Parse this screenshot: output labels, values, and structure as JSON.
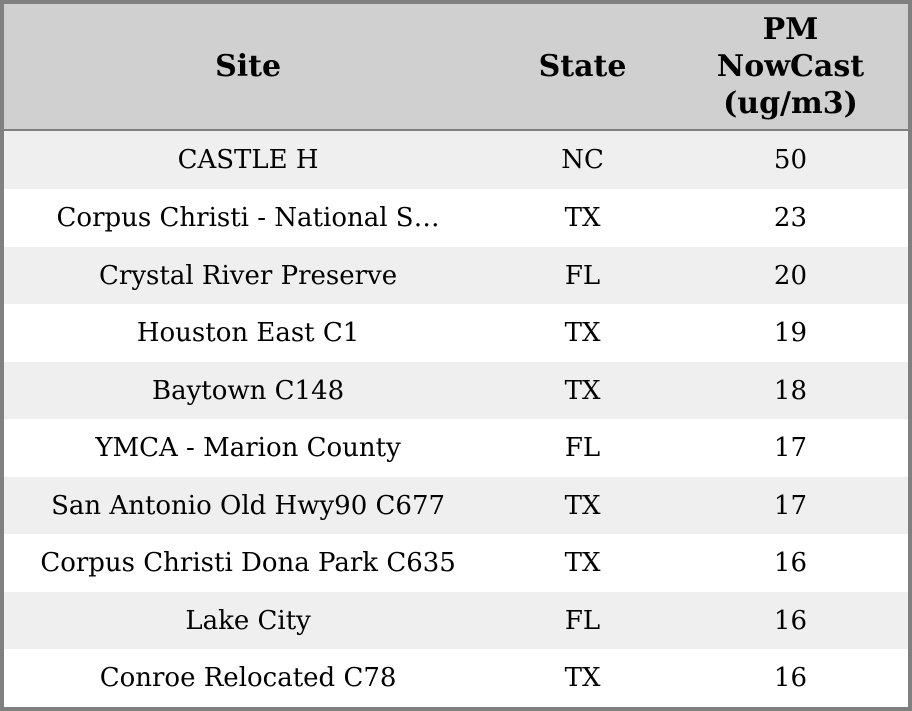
{
  "colors": {
    "border": "#808080",
    "header-bg": "#d0d0d0",
    "row-bg": "#ffffff",
    "row-alt-bg": "#efefef",
    "text": "#000000"
  },
  "table": {
    "columns": [
      {
        "key": "site",
        "label": "Site"
      },
      {
        "key": "state",
        "label": "State"
      },
      {
        "key": "pm",
        "label": "PM NowCast (ug/m3)"
      }
    ],
    "rows": [
      {
        "site": "CASTLE H",
        "state": "NC",
        "pm": "50"
      },
      {
        "site": "Corpus Christi - National S…",
        "state": "TX",
        "pm": "23"
      },
      {
        "site": "Crystal River Preserve",
        "state": "FL",
        "pm": "20"
      },
      {
        "site": "Houston East C1",
        "state": "TX",
        "pm": "19"
      },
      {
        "site": "Baytown C148",
        "state": "TX",
        "pm": "18"
      },
      {
        "site": "YMCA - Marion County",
        "state": "FL",
        "pm": "17"
      },
      {
        "site": "San Antonio Old Hwy90 C677",
        "state": "TX",
        "pm": "17"
      },
      {
        "site": "Corpus Christi Dona Park C635",
        "state": "TX",
        "pm": "16"
      },
      {
        "site": "Lake City",
        "state": "FL",
        "pm": "16"
      },
      {
        "site": "Conroe Relocated C78",
        "state": "TX",
        "pm": "16"
      }
    ]
  }
}
